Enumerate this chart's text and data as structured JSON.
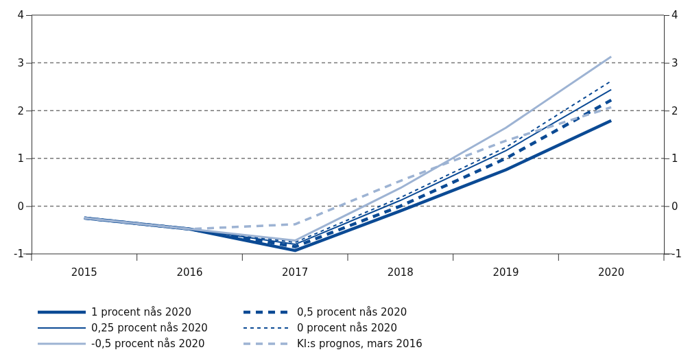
{
  "chart_data": {
    "type": "line",
    "categories": [
      "2015",
      "2016",
      "2017",
      "2018",
      "2019",
      "2020"
    ],
    "ylim": [
      -1,
      4
    ],
    "yticks": [
      -1,
      0,
      1,
      2,
      3,
      4
    ],
    "y2lim": [
      -1,
      4
    ],
    "y2ticks": [
      -1,
      0,
      1,
      2,
      3,
      4
    ],
    "grid": "y",
    "legend": "bottom",
    "marker": "none",
    "series": [
      {
        "name": "1 procent nås 2020",
        "color": "#0b4a94",
        "line_style": "solid",
        "values": [
          -0.25,
          -0.48,
          -0.93,
          -0.1,
          0.76,
          1.79
        ]
      },
      {
        "name": "0,5 procent nås 2020",
        "color": "#0b4a94",
        "line_style": "dashed",
        "values": [
          -0.25,
          -0.48,
          -0.85,
          0.0,
          1.0,
          2.22
        ]
      },
      {
        "name": "0,25 procent nås 2020",
        "color": "#0b4a94",
        "line_style": "solid",
        "values": [
          -0.25,
          -0.48,
          -0.8,
          0.12,
          1.16,
          2.44
        ]
      },
      {
        "name": "0 procent nås 2020",
        "color": "#0b4a94",
        "line_style": "dashed",
        "values": [
          -0.25,
          -0.48,
          -0.76,
          0.18,
          1.23,
          2.62
        ]
      },
      {
        "name": "-0,5 procent nås 2020",
        "color": "#9db3d3",
        "line_style": "solid",
        "values": [
          -0.25,
          -0.48,
          -0.72,
          0.38,
          1.64,
          3.13
        ]
      },
      {
        "name": "KI:s prognos, mars 2016",
        "color": "#9db3d3",
        "line_style": "dashed",
        "values": [
          -0.25,
          -0.48,
          -0.38,
          0.53,
          1.37,
          2.07
        ]
      }
    ]
  }
}
